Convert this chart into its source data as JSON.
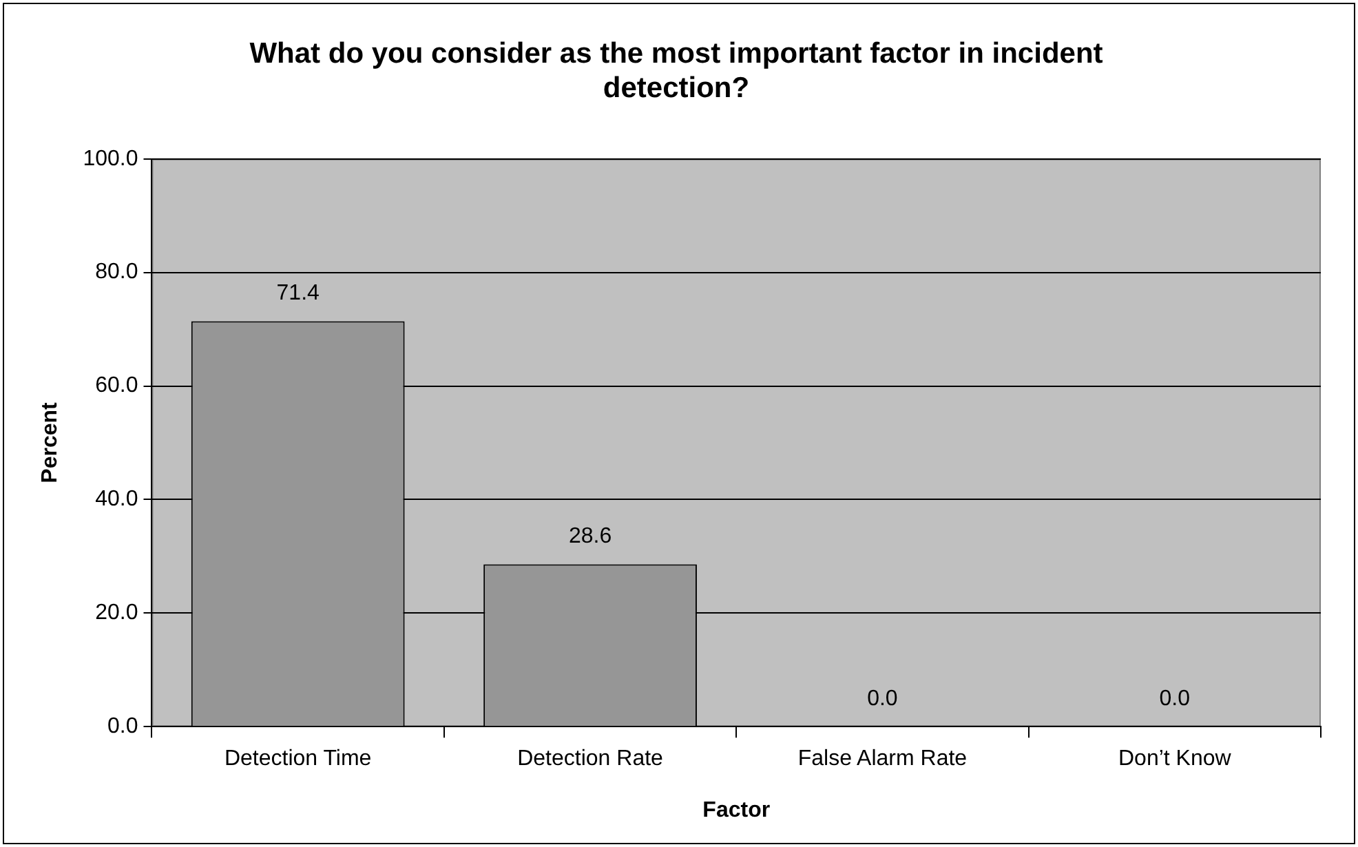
{
  "chart_data": {
    "type": "bar",
    "title": "What do you consider as the most important factor in incident detection?",
    "xlabel": "Factor",
    "ylabel": "Percent",
    "categories": [
      "Detection Time",
      "Detection Rate",
      "False Alarm Rate",
      "Don’t Know"
    ],
    "values": [
      71.4,
      28.6,
      0,
      0
    ],
    "color": "#969696",
    "value_labels": [
      "71.4",
      "28.6",
      "0.0",
      "0.0"
    ],
    "ylim": [
      0,
      100
    ],
    "yticks": [
      {
        "value": 0,
        "label": "0.0"
      },
      {
        "value": 20,
        "label": "20.0"
      },
      {
        "value": 40,
        "label": "40.0"
      },
      {
        "value": 60,
        "label": "60.0"
      },
      {
        "value": 80,
        "label": "80.0"
      },
      {
        "value": 100,
        "label": "100.0"
      }
    ],
    "grid": "y",
    "legend": false
  }
}
